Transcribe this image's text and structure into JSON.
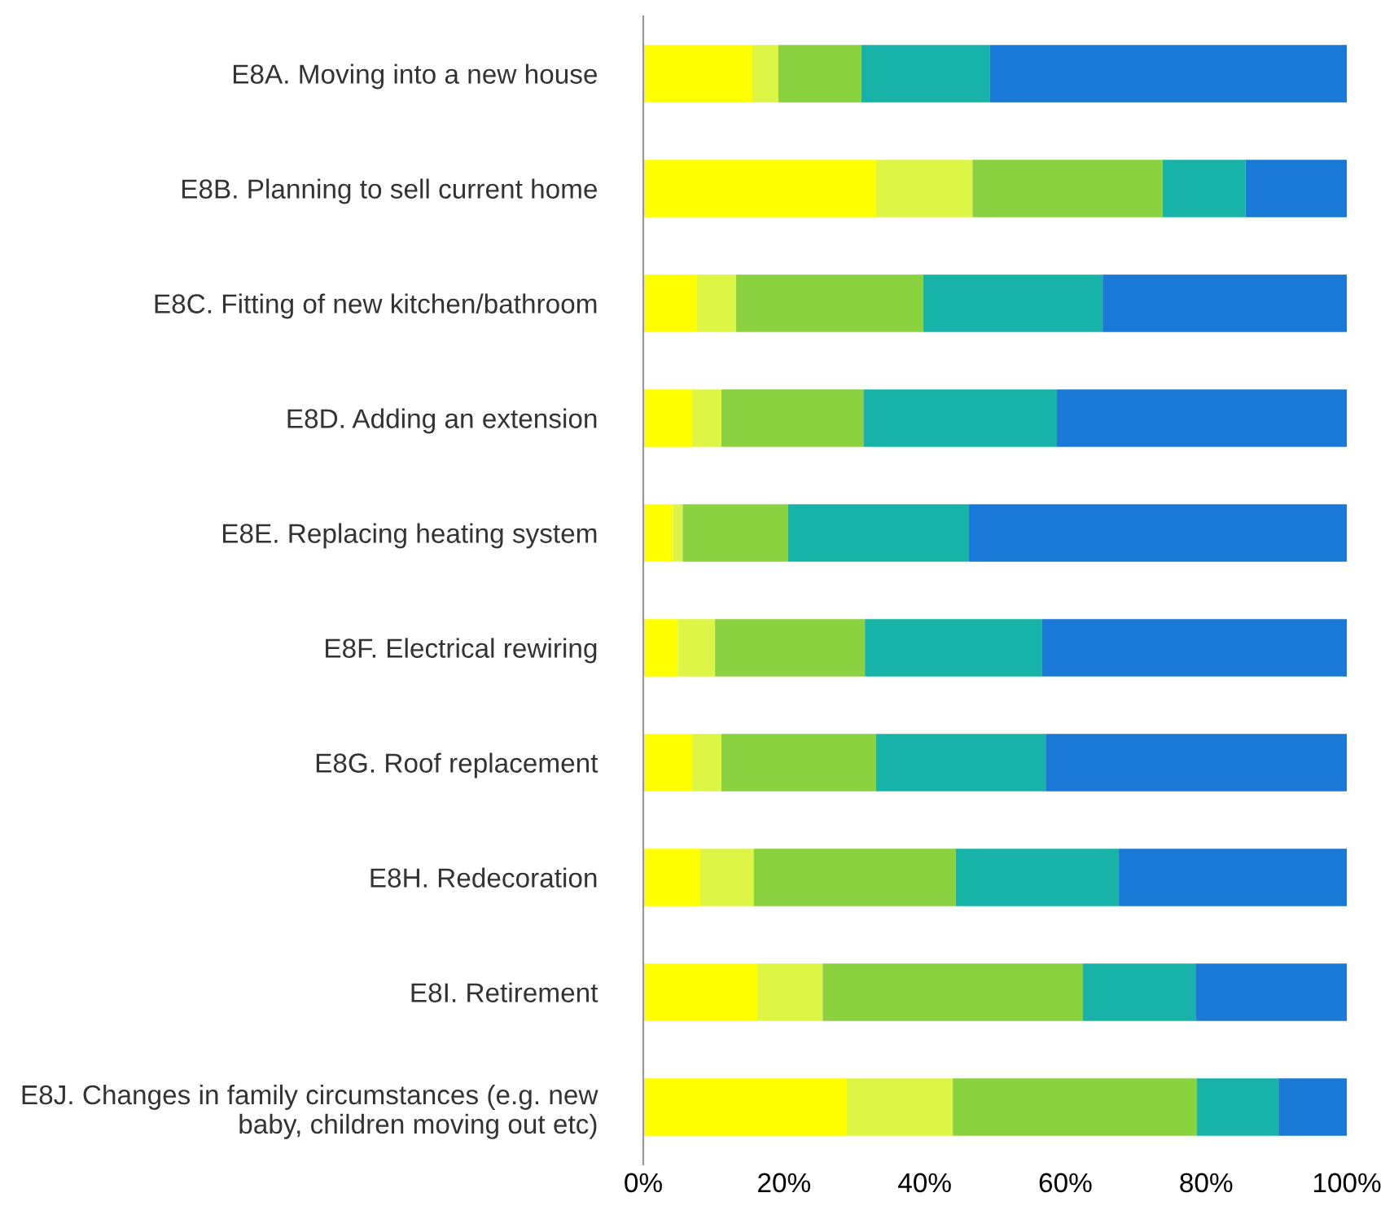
{
  "chart_data": {
    "type": "bar",
    "orientation": "horizontal",
    "stacked": true,
    "categories": [
      "E8A. Moving into a new house",
      "E8B. Planning to sell current home",
      "E8C. Fitting of new kitchen/bathroom",
      "E8D. Adding an extension",
      "E8E. Replacing heating system",
      "E8F. Electrical rewiring",
      "E8G. Roof replacement",
      "E8H. Redecoration",
      "E8I. Retirement",
      "E8J. Changes in family circumstances (e.g. new baby, children moving out etc)"
    ],
    "series": [
      {
        "color": "#ffff00",
        "values": [
          15.5,
          33.1,
          7.6,
          6.9,
          4.2,
          4.9,
          6.9,
          8.1,
          16.2,
          28.9
        ]
      },
      {
        "color": "#ddf545",
        "values": [
          3.7,
          13.7,
          5.6,
          4.2,
          1.4,
          5.3,
          4.2,
          7.6,
          9.3,
          15.1
        ]
      },
      {
        "color": "#8ad23f",
        "values": [
          11.8,
          27.0,
          26.6,
          20.2,
          15.0,
          21.3,
          22.0,
          28.7,
          37.0,
          34.7
        ]
      },
      {
        "color": "#17b3a8",
        "values": [
          18.3,
          11.8,
          25.5,
          27.5,
          25.7,
          25.2,
          24.1,
          23.2,
          16.0,
          11.6
        ]
      },
      {
        "color": "#1a78d6",
        "values": [
          50.7,
          14.4,
          34.7,
          41.2,
          53.7,
          43.3,
          42.8,
          32.4,
          21.5,
          9.7
        ]
      }
    ],
    "xlim": [
      0,
      100
    ],
    "xticks": [
      {
        "value": 0,
        "label": "0%"
      },
      {
        "value": 20,
        "label": "20%"
      },
      {
        "value": 40,
        "label": "40%"
      },
      {
        "value": 60,
        "label": "60%"
      },
      {
        "value": 80,
        "label": "80%"
      },
      {
        "value": 100,
        "label": "100%"
      }
    ],
    "grid": false,
    "legend": false
  }
}
